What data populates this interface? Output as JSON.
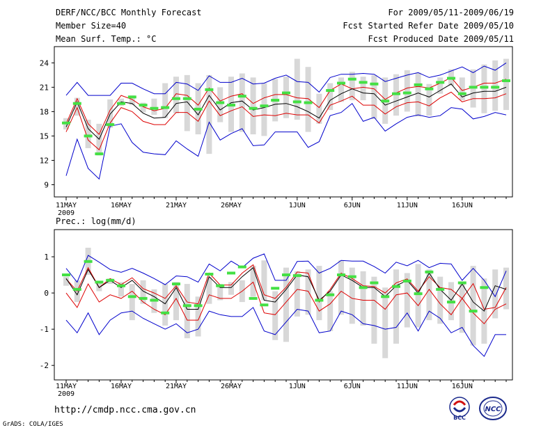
{
  "header": {
    "title": "DERF/NCC/BCC Monthly Forecast",
    "member_size": "Member Size=40",
    "variable": "Mean Surf. Temp.: °C",
    "period": "For 2009/05/11-2009/06/19",
    "started": "Fcst Started Refer Date 2009/05/10",
    "produced": "Fcst Produced Date 2009/05/11"
  },
  "footer": {
    "url": "http://cmdp.ncc.cma.gov.cn",
    "credit": "GrADS: COLA/IGES",
    "logo_bcc_text": "BCC",
    "logo_ncc_text": "NCC"
  },
  "colors": {
    "band_outer": "#0000cc",
    "band_inner": "#dd0000",
    "mean": "#000000",
    "bar": "#d8d8d8",
    "obs": "#44e044"
  },
  "chart_data": [
    {
      "type": "line",
      "title": "Mean Surf. Temp.: °C",
      "x_tick_labels": [
        "11MAY",
        "16MAY",
        "21MAY",
        "26MAY",
        "1JUN",
        "6JUN",
        "11JUN",
        "16JUN"
      ],
      "x_tick_index": [
        0,
        5,
        10,
        15,
        21,
        26,
        31,
        36
      ],
      "x_sublabel": "2009",
      "ylim": [
        7.5,
        26
      ],
      "yticks": [
        9,
        12,
        15,
        18,
        21,
        24
      ],
      "series": [
        {
          "name": "max",
          "values": [
            20,
            21.6,
            20,
            20,
            20,
            21.5,
            21.5,
            20.8,
            20.2,
            20.2,
            21.6,
            21.4,
            20.6,
            22.4,
            21.6,
            21.6,
            22.1,
            21.4,
            21.5,
            22.1,
            22.5,
            21.7,
            21.6,
            20.4,
            22.2,
            22.6,
            22.6,
            22.7,
            22.6,
            21.7,
            22.1,
            22.5,
            22.8,
            22.2,
            22.5,
            23,
            23.5,
            22.8,
            23.6,
            23.1,
            24
          ]
        },
        {
          "name": "upper",
          "values": [
            16.5,
            19.6,
            16.5,
            15.2,
            18.2,
            20,
            19.5,
            18.6,
            18.1,
            18.4,
            20.2,
            20,
            18.8,
            20.9,
            19.3,
            19.9,
            20.2,
            19,
            19.7,
            20.1,
            20.1,
            19.7,
            19.6,
            18.5,
            20.6,
            21.4,
            20.8,
            21,
            20.8,
            19.5,
            20.3,
            20.9,
            21.1,
            20.9,
            21.5,
            22.2,
            20.6,
            21,
            21.5,
            21.5,
            22
          ]
        },
        {
          "name": "mean",
          "values": [
            16.1,
            19.2,
            15.9,
            14.6,
            17.7,
            19.2,
            19,
            17.8,
            17.2,
            17.3,
            19,
            19.2,
            17.6,
            20,
            18.2,
            19.1,
            19.3,
            18.2,
            18.5,
            18.9,
            19,
            18.6,
            18,
            17.2,
            19.4,
            20.2,
            20.8,
            20.3,
            20.2,
            18.8,
            19.3,
            19.8,
            20.3,
            19.8,
            20.6,
            21.4,
            19.8,
            20.3,
            20.5,
            20.5,
            21
          ]
        },
        {
          "name": "lower",
          "values": [
            15.5,
            18.5,
            14.5,
            13.3,
            16.6,
            18.5,
            18,
            16.8,
            16.4,
            16.4,
            17.9,
            17.9,
            16.8,
            19.3,
            17.5,
            18.1,
            18.6,
            17.4,
            17.6,
            17.5,
            17.8,
            17.6,
            17.6,
            16.6,
            18.8,
            19.3,
            19.9,
            18.8,
            18.8,
            17.7,
            18.6,
            19.1,
            19.2,
            18.7,
            19.7,
            20.4,
            19.2,
            19.6,
            19.6,
            19.7,
            20.2
          ]
        },
        {
          "name": "min",
          "values": [
            10.1,
            14.6,
            11,
            9.7,
            16.2,
            16.5,
            14.2,
            13,
            12.8,
            12.7,
            14.4,
            13.4,
            12.5,
            16.7,
            14.5,
            15.3,
            15.9,
            13.8,
            13.9,
            15.5,
            15.5,
            15.5,
            13.6,
            14.3,
            17.5,
            17.9,
            19,
            16.8,
            17.3,
            15.6,
            16.5,
            17.3,
            17.6,
            17.3,
            17.5,
            18.5,
            18.3,
            17.1,
            17.4,
            17.9,
            17.6
          ]
        },
        {
          "name": "range_low",
          "values": [
            15.8,
            17.5,
            13.5,
            12.6,
            16,
            18.7,
            18.8,
            17.9,
            17.6,
            17.2,
            17.8,
            15.6,
            15.2,
            12.8,
            16.7,
            15.5,
            15.5,
            15.2,
            15,
            16.8,
            17.2,
            17,
            15.5,
            16.5,
            18.2,
            19.2,
            19.4,
            19.4,
            17.1,
            16.5,
            17.5,
            18,
            17.4,
            17.5,
            20.2,
            21.2,
            19.4,
            18.5,
            17.8,
            18.1,
            18.2
          ]
        },
        {
          "name": "range_high",
          "values": [
            17.2,
            19.7,
            17,
            16.5,
            19.5,
            19.6,
            20,
            19.1,
            19.6,
            21.5,
            22.3,
            22.5,
            21.5,
            22.5,
            21,
            22.3,
            22.7,
            22.2,
            21.5,
            22,
            22.3,
            24.5,
            23.5,
            20.2,
            21.5,
            22.2,
            22.9,
            22.3,
            22.5,
            22.2,
            22.6,
            23.1,
            22.8,
            21.4,
            22.2,
            23.2,
            22.2,
            23.2,
            23.8,
            24.3,
            24.5
          ]
        },
        {
          "name": "observed",
          "values": [
            16.6,
            19,
            15,
            12.8,
            16.4,
            19,
            19.8,
            18.8,
            18.4,
            18.5,
            19.6,
            19.6,
            18.3,
            20.7,
            19.1,
            18.8,
            19.9,
            18.4,
            18.7,
            19.4,
            20.3,
            19.2,
            19.1,
            null,
            20.6,
            21.5,
            22,
            21.6,
            21.4,
            19.3,
            20.2,
            20.3,
            21.3,
            20.8,
            21.6,
            22.1,
            20.2,
            21,
            21,
            21,
            21.8
          ]
        }
      ]
    },
    {
      "type": "line",
      "title": "Prec.: log(mm/d)",
      "x_tick_labels": [
        "11MAY",
        "16MAY",
        "21MAY",
        "26MAY",
        "1JUN",
        "6JUN",
        "11JUN",
        "16JUN"
      ],
      "x_tick_index": [
        0,
        5,
        10,
        15,
        21,
        26,
        31,
        36
      ],
      "x_sublabel": "2009",
      "ylim": [
        -2.4,
        1.75
      ],
      "yticks": [
        -2,
        -1,
        0,
        1
      ],
      "series": [
        {
          "name": "max",
          "values": [
            0.68,
            0.3,
            1.04,
            0.85,
            0.65,
            0.57,
            0.68,
            0.55,
            0.4,
            0.23,
            0.47,
            0.45,
            0.3,
            0.8,
            0.61,
            0.88,
            0.7,
            0.96,
            1.08,
            0.35,
            0.35,
            0.87,
            0.88,
            0.55,
            0.68,
            0.9,
            0.88,
            0.88,
            0.73,
            0.55,
            0.85,
            0.75,
            0.9,
            0.7,
            0.82,
            0.8,
            0.35,
            0.68,
            0.35,
            -0.1,
            0.61
          ]
        },
        {
          "name": "upper",
          "values": [
            0.39,
            0.05,
            0.7,
            0.15,
            0.4,
            0.23,
            0.42,
            0.12,
            0,
            -0.15,
            0.2,
            -0.25,
            -0.3,
            0.55,
            0.22,
            0.22,
            0.55,
            0.78,
            -0.05,
            -0.15,
            0.16,
            0.58,
            0.55,
            -0.25,
            0.1,
            0.55,
            0.4,
            0.2,
            0.18,
            0,
            0.28,
            0.39,
            0.05,
            0.45,
            0.15,
            0.1,
            -0.15,
            0.26,
            -0.45,
            -0.4,
            0.15
          ]
        },
        {
          "name": "mean",
          "values": [
            0.4,
            -0.05,
            0.65,
            0.15,
            0.35,
            0.15,
            0.35,
            0.05,
            -0.1,
            -0.3,
            0.15,
            -0.45,
            -0.45,
            0.45,
            0.15,
            0.15,
            0.45,
            0.7,
            -0.2,
            -0.25,
            0.1,
            0.5,
            0.45,
            -0.2,
            0.05,
            0.5,
            0.35,
            0.15,
            0.15,
            -0.1,
            0.2,
            0.35,
            0,
            0.55,
            0.1,
            -0.2,
            0.25,
            -0.25,
            -0.5,
            0.2,
            0.1
          ]
        },
        {
          "name": "lower",
          "values": [
            0,
            -0.4,
            0.25,
            -0.25,
            -0.05,
            -0.15,
            0.05,
            -0.25,
            -0.45,
            -0.6,
            -0.15,
            -0.75,
            -0.75,
            -0.05,
            -0.15,
            -0.15,
            0.05,
            0.3,
            -0.55,
            -0.6,
            -0.25,
            0.1,
            0.05,
            -0.5,
            -0.3,
            0.05,
            -0.15,
            -0.2,
            -0.2,
            -0.45,
            -0.05,
            0,
            -0.35,
            0.1,
            -0.3,
            -0.6,
            -0.15,
            -0.55,
            -0.85,
            -0.45,
            -0.3
          ]
        },
        {
          "name": "min",
          "values": [
            -0.75,
            -1.1,
            -0.55,
            -1.15,
            -0.75,
            -0.55,
            -0.5,
            -0.7,
            -0.85,
            -1,
            -0.85,
            -1.1,
            -1,
            -0.5,
            -0.6,
            -0.65,
            -0.65,
            -0.4,
            -1.05,
            -1.15,
            -0.8,
            -0.45,
            -0.5,
            -1.1,
            -1.05,
            -0.5,
            -0.6,
            -0.85,
            -0.9,
            -1,
            -0.95,
            -0.55,
            -1.05,
            -0.5,
            -0.7,
            -1.1,
            -0.95,
            -1.45,
            -1.75,
            -1.15,
            -1.15
          ]
        },
        {
          "name": "range_low",
          "values": [
            0.2,
            -0.25,
            0.5,
            0.05,
            0.25,
            -0.1,
            -0.75,
            -0.3,
            -0.55,
            -0.9,
            -0.75,
            -1.25,
            -1.2,
            -0.3,
            -0.2,
            -0.05,
            -0.25,
            -0.1,
            -0.2,
            -1.3,
            -1.35,
            -0.65,
            -0.6,
            -0.75,
            -1.05,
            -0.6,
            -0.85,
            -0.9,
            -1.4,
            -1.8,
            -1.4,
            -0.95,
            -0.95,
            -0.75,
            -0.85,
            -0.75,
            -1.1,
            -1.45,
            -1.4,
            -0.7,
            -0.45
          ]
        },
        {
          "name": "range_high",
          "values": [
            0.45,
            0.35,
            1.25,
            0.3,
            0.4,
            0.3,
            0.25,
            0.35,
            0.1,
            0.25,
            0.3,
            0.25,
            -0.1,
            0.45,
            0.25,
            0.3,
            0.35,
            0.75,
            0.9,
            0.05,
            0.7,
            0.6,
            0.65,
            0.75,
            0.05,
            0.9,
            0.7,
            0.6,
            0.45,
            0.15,
            0.65,
            0.55,
            0.8,
            0.65,
            0.45,
            0.3,
            0.3,
            0.75,
            0.4,
            0.65,
            0.7
          ]
        },
        {
          "name": "observed",
          "values": [
            0.5,
            0.1,
            0.87,
            0.3,
            0.35,
            0.2,
            -0.1,
            -0.15,
            -0.2,
            -0.55,
            0.25,
            -0.35,
            -0.35,
            0.52,
            0.2,
            0.55,
            0.72,
            -0.15,
            -0.33,
            0.13,
            0.5,
            0.48,
            null,
            -0.2,
            -0.05,
            0.5,
            0.45,
            0.15,
            0.28,
            -0.1,
            0.18,
            0.33,
            -0.02,
            0.58,
            0.1,
            -0.25,
            0.28,
            -0.5,
            0.15,
            null,
            null
          ]
        }
      ]
    }
  ]
}
